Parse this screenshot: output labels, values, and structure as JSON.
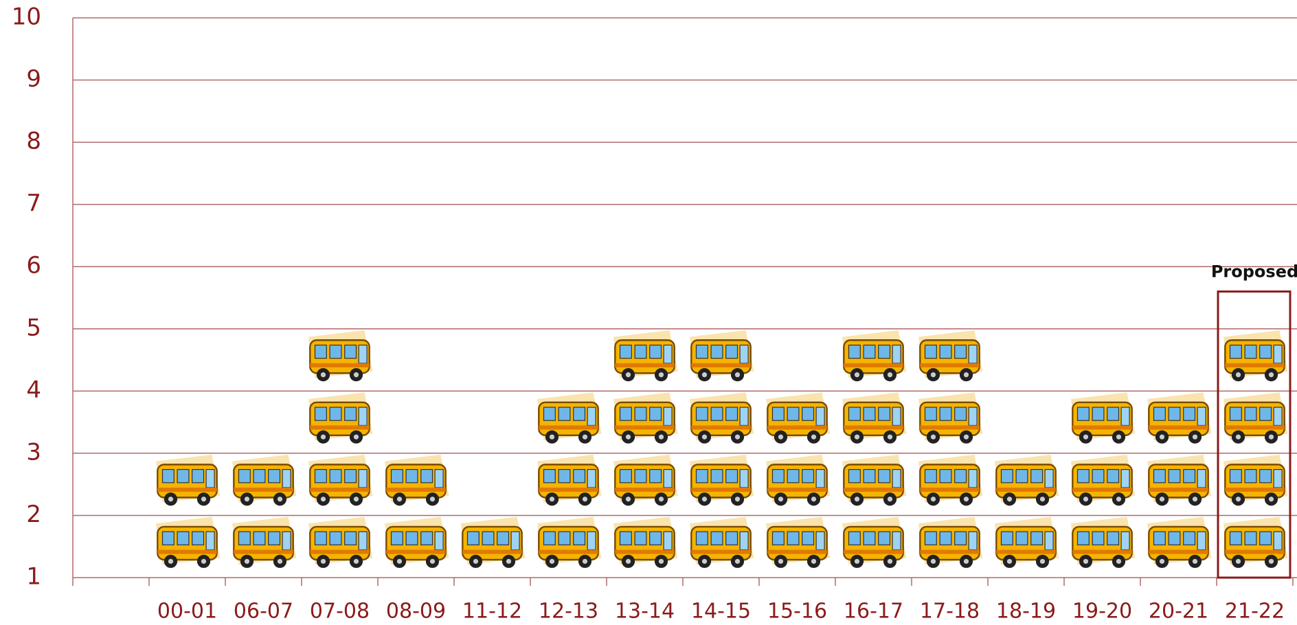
{
  "chart_data": {
    "type": "pictograph",
    "categories": [
      null,
      "00-01",
      "06-07",
      "07-08",
      "08-09",
      "11-12",
      "12-13",
      "13-14",
      "14-15",
      "15-16",
      "16-17",
      "17-18",
      "18-19",
      "19-20",
      "20-21",
      "21-22"
    ],
    "values": [
      null,
      3,
      3,
      5,
      3,
      2,
      4,
      5,
      5,
      4,
      5,
      5,
      3,
      4,
      4,
      5
    ],
    "ylim": [
      1,
      10
    ],
    "yticks": [
      1,
      2,
      3,
      4,
      5,
      6,
      7,
      8,
      9,
      10
    ],
    "grid": true,
    "color": "#f5b400",
    "grid_color": "#b06a6a",
    "annotation": "Proposed"
  }
}
